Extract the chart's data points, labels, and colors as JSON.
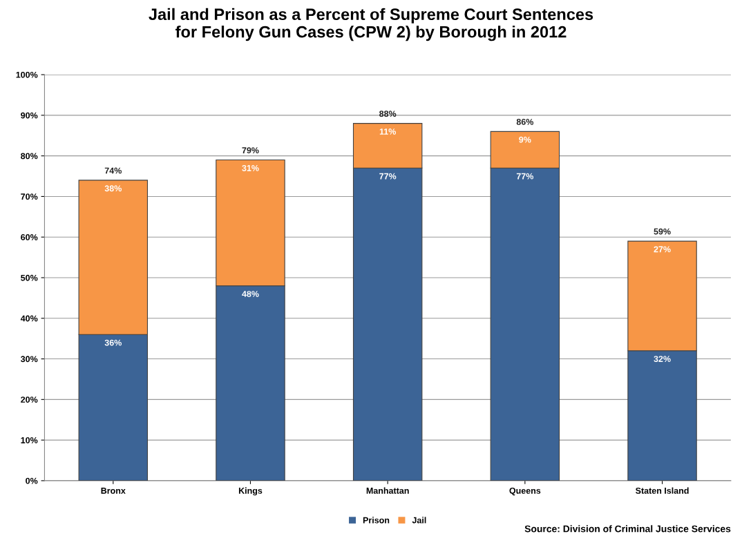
{
  "chart_data": {
    "type": "bar",
    "stacked": true,
    "title": "Jail and Prison as a Percent of Supreme Court Sentences\nfor Felony Gun Cases (CPW 2) by Borough in 2012",
    "categories": [
      "Bronx",
      "Kings",
      "Manhattan",
      "Queens",
      "Staten Island"
    ],
    "series": [
      {
        "name": "Prison",
        "color": "#3c6496",
        "values": [
          36,
          48,
          77,
          77,
          32
        ],
        "value_labels": [
          "36%",
          "48%",
          "77%",
          "77%",
          "32%"
        ]
      },
      {
        "name": "Jail",
        "color": "#f79646",
        "values": [
          38,
          31,
          11,
          9,
          27
        ],
        "value_labels": [
          "38%",
          "31%",
          "11%",
          "9%",
          "27%"
        ]
      }
    ],
    "totals": [
      "74%",
      "79%",
      "88%",
      "86%",
      "59%"
    ],
    "ylim": [
      0,
      100
    ],
    "yticks": [
      {
        "value": 0,
        "label": "0%"
      },
      {
        "value": 10,
        "label": "10%"
      },
      {
        "value": 20,
        "label": "20%"
      },
      {
        "value": 30,
        "label": "30%"
      },
      {
        "value": 40,
        "label": "40%"
      },
      {
        "value": 50,
        "label": "50%"
      },
      {
        "value": 60,
        "label": "60%"
      },
      {
        "value": 70,
        "label": "70%"
      },
      {
        "value": 80,
        "label": "80%"
      },
      {
        "value": 90,
        "label": "90%"
      },
      {
        "value": 100,
        "label": "100%"
      }
    ],
    "grid": "y",
    "legend": "bottom",
    "annotations": [
      "Source: Division of Criminal Justice Services"
    ]
  }
}
